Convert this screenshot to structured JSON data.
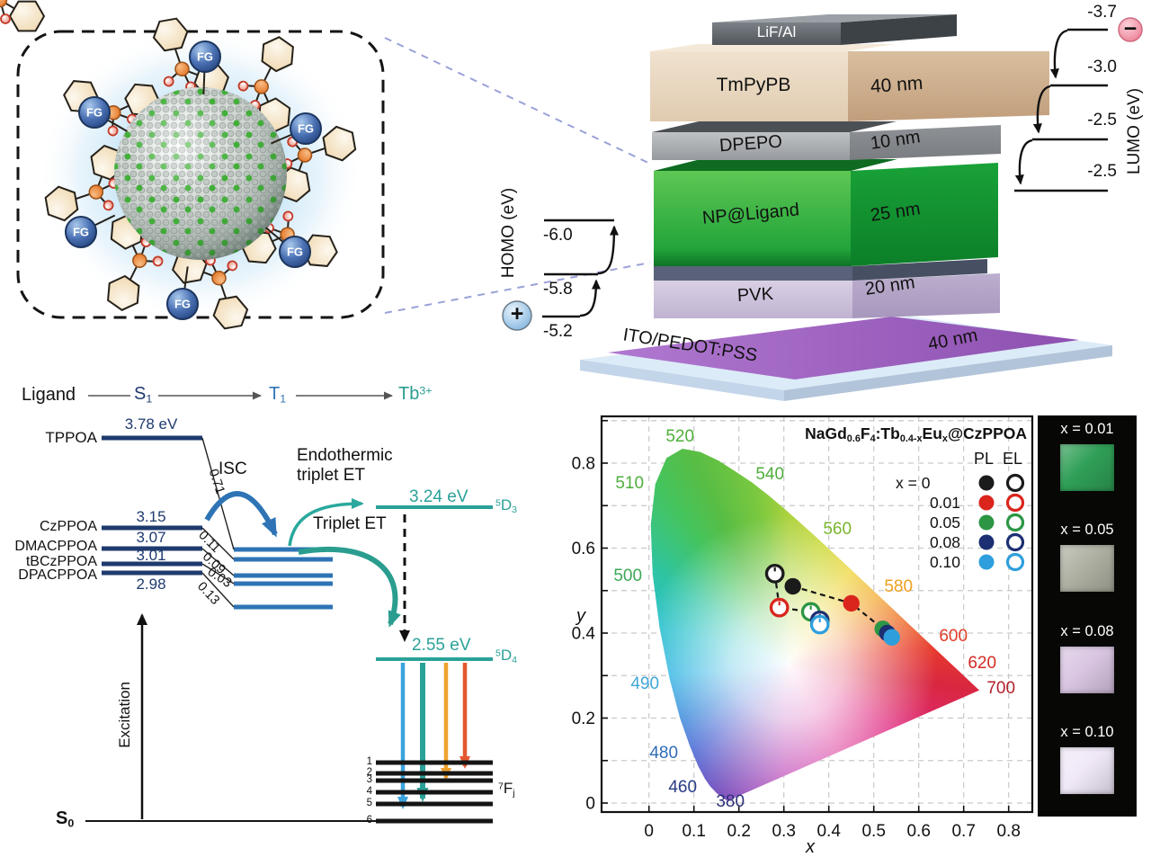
{
  "nanoparticle": {
    "fg_label": "FG"
  },
  "device": {
    "layers": [
      {
        "name": "LiF/Al",
        "thickness": ""
      },
      {
        "name": "TmPyPB",
        "thickness": "40 nm"
      },
      {
        "name": "DPEPO",
        "thickness": "10 nm"
      },
      {
        "name": "NP@Ligand",
        "thickness": "25 nm"
      },
      {
        "name": "PVK",
        "thickness": "20 nm"
      },
      {
        "name": "ITO/PEDOT:PSS",
        "thickness": "40 nm"
      }
    ],
    "homo": {
      "axis": "HOMO (eV)",
      "levels": [
        "-6.0",
        "-5.8",
        "-5.2"
      ],
      "carrier": "+"
    },
    "lumo": {
      "axis": "LUMO (eV)",
      "levels": [
        "-3.7",
        "-3.0",
        "-2.5",
        "-2.5"
      ],
      "carrier": "−"
    }
  },
  "energy": {
    "header": {
      "ligand": "Ligand",
      "s1_main": "S",
      "s1_sub": "1",
      "t1_main": "T",
      "t1_sub": "1",
      "tb_main": "Tb",
      "tb_sup": "3+"
    },
    "ligands": [
      {
        "name": "TPPOA",
        "value": "3.78 eV",
        "isc": "0.71"
      },
      {
        "name": "CzPPOA",
        "value": "3.15",
        "isc": "0.11"
      },
      {
        "name": "DMACPPOA",
        "value": "3.07",
        "isc": "0.09"
      },
      {
        "name": "tBCzPPOA",
        "value": "3.01",
        "isc": "0.03"
      },
      {
        "name": "DPACPPOA",
        "value": "2.98",
        "isc": "0.13"
      }
    ],
    "isc_label": "ISC",
    "endothermic_line1": "Endothermic",
    "endothermic_line2": "triplet ET",
    "triplet_et_label": "Triplet ET",
    "excitation_label": "Excitation",
    "d3": {
      "value": "3.24 eV",
      "sup": "5",
      "main": "D",
      "sub": "3"
    },
    "d4": {
      "value": "2.55 eV",
      "sup": "5",
      "main": "D",
      "sub": "4"
    },
    "f_term": {
      "sup": "7",
      "main": "F",
      "sub": "j"
    },
    "f_levels": [
      "1",
      "2",
      "3",
      "4",
      "5",
      "6"
    ],
    "s0": {
      "main": "S",
      "sub": "0"
    }
  },
  "chart_data": {
    "type": "scatter",
    "title_parts": [
      {
        "text": "NaGd"
      },
      {
        "text": "0.6",
        "style": "sub"
      },
      {
        "text": "F"
      },
      {
        "text": "4",
        "style": "sub"
      },
      {
        "text": ":Tb"
      },
      {
        "text": "0.4-x",
        "style": "sub"
      },
      {
        "text": "Eu"
      },
      {
        "text": "x",
        "style": "sub"
      },
      {
        "text": "@CzPPOA"
      }
    ],
    "xlabel": "x",
    "ylabel": "y",
    "x_ticks": [
      "0",
      "0.1",
      "0.2",
      "0.3",
      "0.4",
      "0.5",
      "0.6",
      "0.7",
      "0.8"
    ],
    "y_ticks": [
      "0",
      "0.2",
      "0.4",
      "0.6",
      "0.8"
    ],
    "xlim": [
      -0.105,
      0.853
    ],
    "ylim": [
      -0.021,
      0.91
    ],
    "grid": true,
    "legend": {
      "col_pl": "PL",
      "col_el": "EL",
      "x_prefix": "x  =",
      "rows": [
        {
          "label": "0",
          "color": "#1b1b1b"
        },
        {
          "label": "0.01",
          "color": "#da251d"
        },
        {
          "label": "0.05",
          "color": "#2c9645"
        },
        {
          "label": "0.08",
          "color": "#1c2f72"
        },
        {
          "label": "0.10",
          "color": "#2e9fdc"
        }
      ]
    },
    "series": [
      {
        "name": "PL",
        "marker": "filled",
        "points": [
          {
            "x": 0.32,
            "y": 0.51
          },
          {
            "x": 0.45,
            "y": 0.47
          },
          {
            "x": 0.52,
            "y": 0.41
          },
          {
            "x": 0.53,
            "y": 0.4
          },
          {
            "x": 0.54,
            "y": 0.39
          }
        ]
      },
      {
        "name": "EL",
        "marker": "open",
        "points": [
          {
            "x": 0.28,
            "y": 0.54
          },
          {
            "x": 0.29,
            "y": 0.46
          },
          {
            "x": 0.36,
            "y": 0.45
          },
          {
            "x": 0.38,
            "y": 0.43
          },
          {
            "x": 0.38,
            "y": 0.42
          }
        ]
      }
    ],
    "locus_labels": [
      {
        "text": "520",
        "x": 0.069,
        "y": 0.863,
        "color": "#4fae3c"
      },
      {
        "text": "540",
        "x": 0.269,
        "y": 0.775,
        "color": "#4fae3c"
      },
      {
        "text": "560",
        "x": 0.419,
        "y": 0.645,
        "color": "#7ab52e"
      },
      {
        "text": "580",
        "x": 0.555,
        "y": 0.51,
        "color": "#f0a021"
      },
      {
        "text": "600",
        "x": 0.677,
        "y": 0.394,
        "color": "#e03c28"
      },
      {
        "text": "620",
        "x": 0.741,
        "y": 0.33,
        "color": "#d32b22"
      },
      {
        "text": "700",
        "x": 0.783,
        "y": 0.271,
        "color": "#b2202c"
      },
      {
        "text": "510",
        "x": -0.043,
        "y": 0.753,
        "color": "#4fae3c"
      },
      {
        "text": "500",
        "x": -0.047,
        "y": 0.535,
        "color": "#3da856"
      },
      {
        "text": "490",
        "x": -0.009,
        "y": 0.281,
        "color": "#3fa8d8"
      },
      {
        "text": "480",
        "x": 0.033,
        "y": 0.119,
        "color": "#2f6db5"
      },
      {
        "text": "460",
        "x": 0.075,
        "y": 0.038,
        "color": "#283c85"
      },
      {
        "text": "380",
        "x": 0.181,
        "y": 0.004,
        "color": "#2c3178"
      }
    ]
  },
  "photos": {
    "labels": [
      "x = 0.01",
      "x = 0.05",
      "x = 0.08",
      "x = 0.10"
    ],
    "colors": [
      "#2f9f57",
      "#aeb0a2",
      "#d9c5e2",
      "#f0e8f7"
    ]
  }
}
